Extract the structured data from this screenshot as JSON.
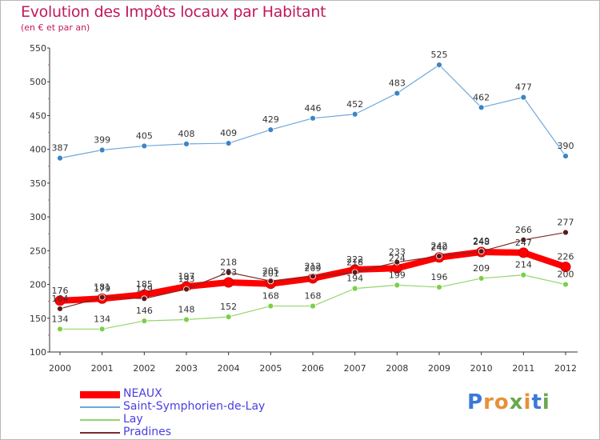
{
  "title": "Evolution des Impôts locaux par Habitant",
  "subtitle": "(en € et par an)",
  "logo_text": "Proxiti",
  "chart_data": {
    "type": "line",
    "title": "Evolution des Impôts locaux par Habitant",
    "subtitle": "(en € et par an)",
    "xlabel": "",
    "ylabel": "",
    "x": [
      "2000",
      "2001",
      "2002",
      "2003",
      "2004",
      "2005",
      "2006",
      "2007",
      "2008",
      "2009",
      "2010",
      "2011",
      "2012"
    ],
    "ylim": [
      100,
      550
    ],
    "yticks": [
      100,
      150,
      200,
      250,
      300,
      350,
      400,
      450,
      500,
      550
    ],
    "grid": false,
    "legend_position": "bottom-left",
    "series": [
      {
        "name": "NEAUX",
        "color": "#ff0000",
        "values": [
          176,
          179,
          185,
          197,
          203,
          201,
          209,
          222,
          224,
          240,
          248,
          247,
          226
        ]
      },
      {
        "name": "Saint-Symphorien-de-Lay",
        "color": "#6fa8dc",
        "values": [
          387,
          399,
          405,
          408,
          409,
          429,
          446,
          452,
          483,
          525,
          462,
          477,
          390
        ]
      },
      {
        "name": "Lay",
        "color": "#93d56b",
        "values": [
          134,
          134,
          146,
          148,
          152,
          168,
          168,
          194,
          199,
          196,
          209,
          214,
          200
        ]
      },
      {
        "name": "Pradines",
        "color": "#7a2b2b",
        "values": [
          164,
          181,
          179,
          193,
          218,
          205,
          212,
          218,
          233,
          242,
          249,
          266,
          277
        ]
      }
    ]
  }
}
